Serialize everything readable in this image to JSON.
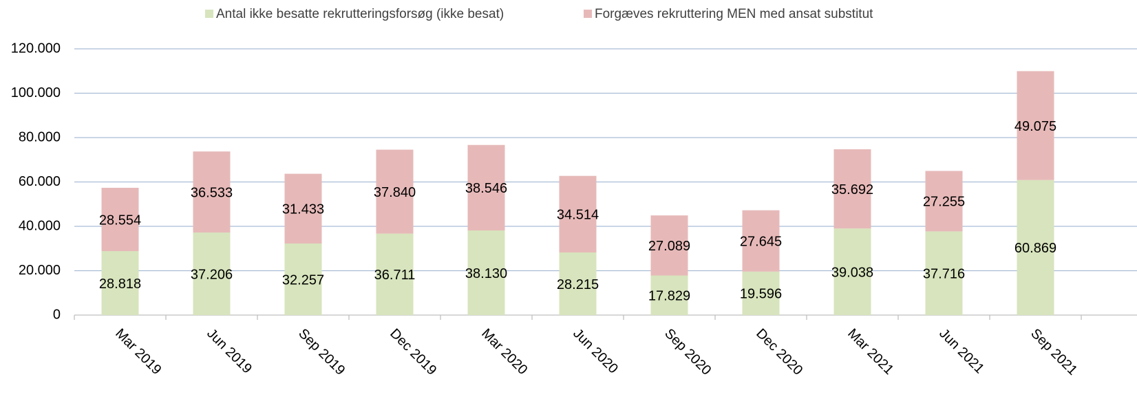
{
  "chart_data": {
    "type": "stacked_bar",
    "categories": [
      "Mar 2019",
      "Jun 2019",
      "Sep 2019",
      "Dec 2019",
      "Mar 2020",
      "Jun 2020",
      "Sep 2020",
      "Dec 2020",
      "Mar 2021",
      "Jun 2021",
      "Sep 2021"
    ],
    "series": [
      {
        "name": "Antal ikke besatte rekrutteringsforsøg (ikke besat)",
        "color": "#d7e4bd",
        "values": [
          28818,
          37206,
          32257,
          36711,
          38130,
          28215,
          17829,
          19596,
          39038,
          37716,
          60869
        ],
        "value_labels": [
          "28.818",
          "37.206",
          "32.257",
          "36.711",
          "38.130",
          "28.215",
          "17.829",
          "19.596",
          "39.038",
          "37.716",
          "60.869"
        ]
      },
      {
        "name": "Forgæves rekruttering MEN med ansat substitut",
        "color": "#e6b9b8",
        "values": [
          28554,
          36533,
          31433,
          37840,
          38546,
          34514,
          27089,
          27645,
          35692,
          27255,
          49075
        ],
        "value_labels": [
          "28.554",
          "36.533",
          "31.433",
          "37.840",
          "38.546",
          "34.514",
          "27.089",
          "27.645",
          "35.692",
          "27.255",
          "49.075"
        ]
      }
    ],
    "ylim": [
      0,
      120000
    ],
    "yticks": [
      0,
      {
        "value": 20000,
        "label": "20.000"
      },
      {
        "value": 40000,
        "label": "40.000"
      },
      {
        "value": 60000,
        "label": "60.000"
      },
      {
        "value": 80000,
        "label": "80.000"
      },
      {
        "value": 100000,
        "label": "100.000"
      },
      {
        "value": 120000,
        "label": "120.000"
      }
    ],
    "grid": true,
    "legend": "top"
  }
}
